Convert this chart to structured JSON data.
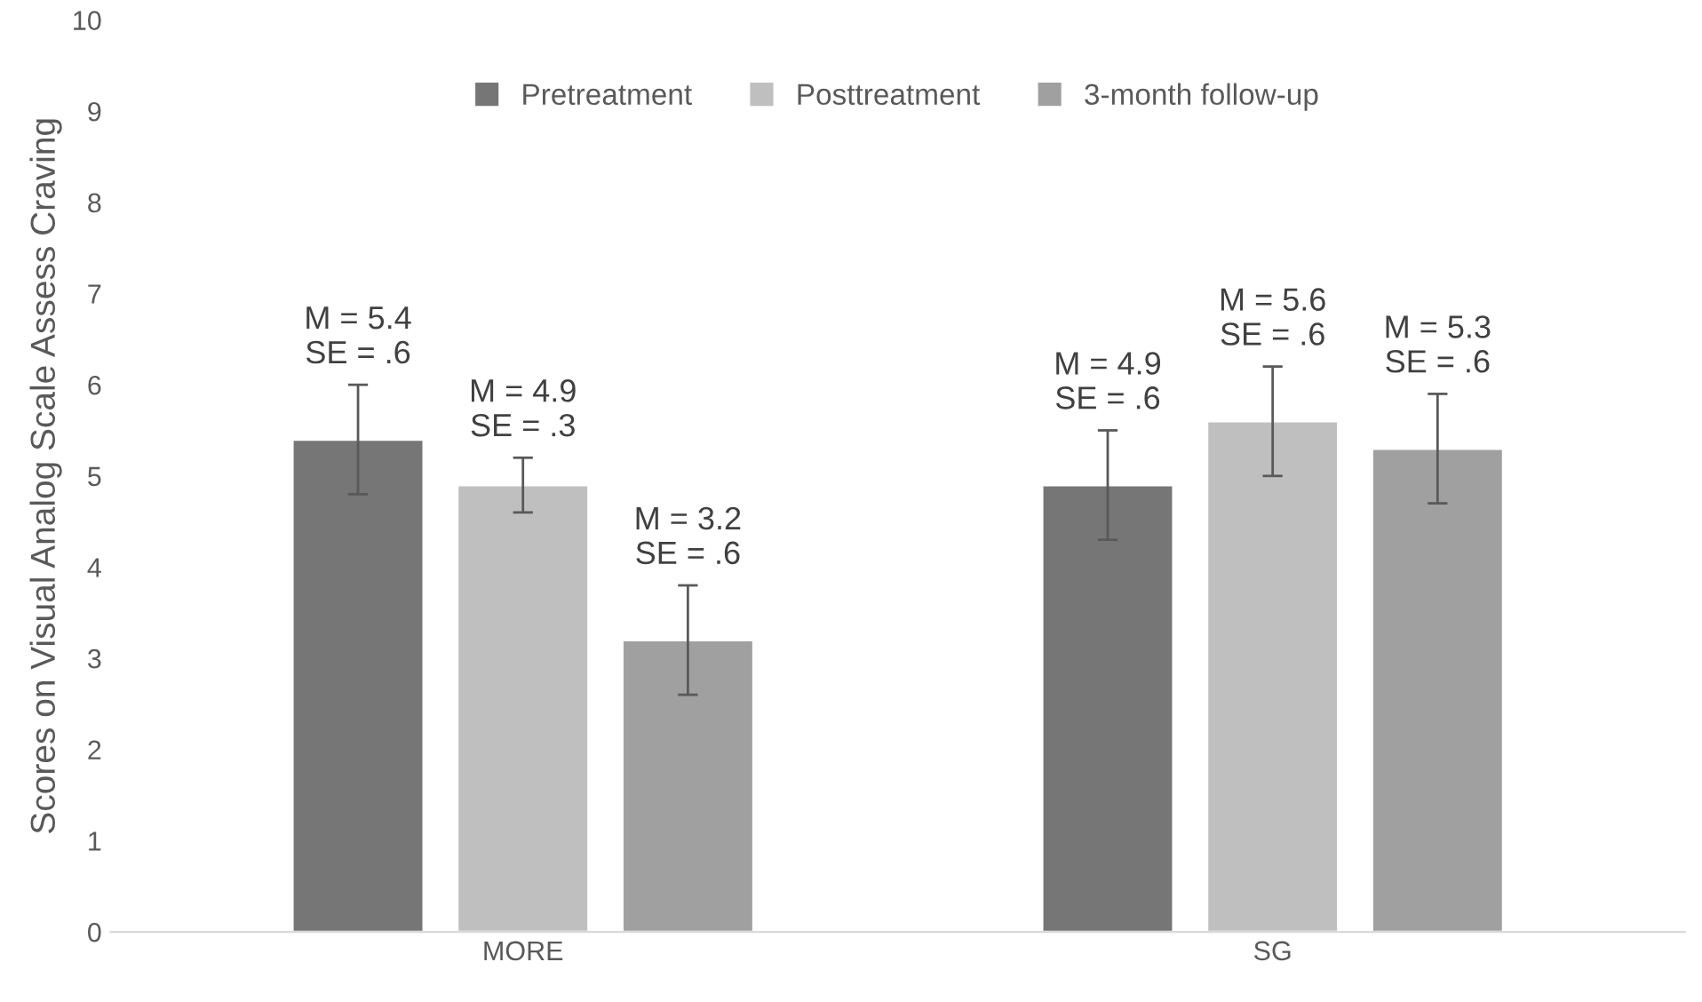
{
  "chart_data": {
    "type": "bar",
    "ylabel": "Scores on Visual Analog Scale Assess Craving",
    "categories": [
      "MORE",
      "SG"
    ],
    "series": [
      {
        "name": "Pretreatment",
        "color": "#767676",
        "values": [
          5.4,
          4.9
        ],
        "errors": [
          0.6,
          0.6
        ],
        "value_labels": [
          "M = 5.4\nSE = .6",
          "M = 4.9\nSE = .6"
        ]
      },
      {
        "name": "Posttreatment",
        "color": "#bfbfbf",
        "values": [
          4.9,
          5.6
        ],
        "errors": [
          0.3,
          0.6
        ],
        "value_labels": [
          "M = 4.9\nSE = .3",
          "M = 5.6\nSE = .6"
        ]
      },
      {
        "name": "3-month follow-up",
        "color": "#a0a0a0",
        "values": [
          3.2,
          5.3
        ],
        "errors": [
          0.6,
          0.6
        ],
        "value_labels": [
          "M = 3.2\nSE = .6",
          "M = 5.3\nSE = .6"
        ]
      }
    ],
    "ylim": [
      0,
      10
    ],
    "yticks": [
      0,
      1,
      2,
      3,
      4,
      5,
      6,
      7,
      8,
      9,
      10
    ],
    "grid": false,
    "legend": "top"
  }
}
